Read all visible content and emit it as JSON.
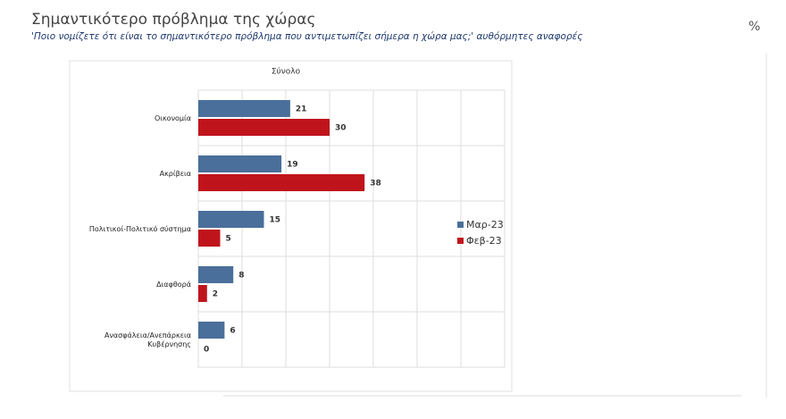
{
  "header": {
    "title": "Σημαντικότερο πρόβλημα της χώρας",
    "subtitle": "'Ποιο νομίζετε ότι είναι το σημαντικότερο πρόβλημα που αντιμετωπίζει σήμερα η χώρα μας;' αυθόρμητες αναφορές",
    "unit": "%"
  },
  "chart_data": {
    "type": "hbar",
    "title": "Σύνολο",
    "categories": [
      "Οικονομία",
      "Ακρίβεια",
      "Πολιτικοί-Πολιτικό σύστημα",
      "Διαφθορά",
      "Ανασφάλεια/Ανεπάρκεια Κυβέρνησης"
    ],
    "series": [
      {
        "name": "Μαρ-23",
        "color": "#4a6f9a",
        "values": [
          21,
          19,
          15,
          8,
          6
        ]
      },
      {
        "name": "Φεβ-23",
        "color": "#c0141c",
        "values": [
          30,
          38,
          5,
          2,
          0
        ]
      }
    ],
    "xlim": [
      0,
      70
    ],
    "xticks": [
      0,
      10,
      20,
      30,
      40,
      50,
      60,
      70
    ],
    "grid": true,
    "legend": "right"
  }
}
